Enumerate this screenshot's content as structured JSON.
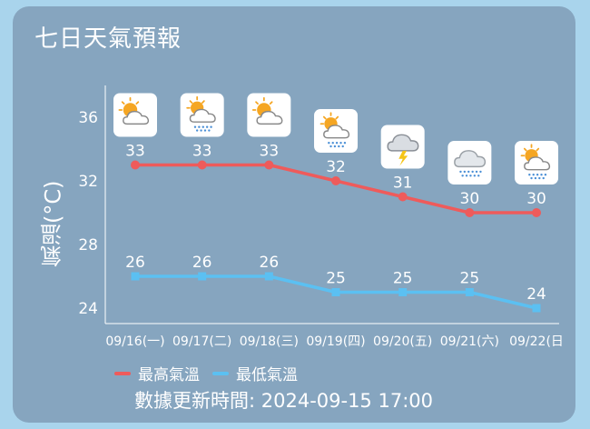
{
  "title": "七日天氣預報",
  "updated": "數據更新時間: 2024-09-15 17:00",
  "chart_data": {
    "type": "line",
    "ylabel": "氣溫(°C)",
    "xlabel": "",
    "categories": [
      "09/16(一)",
      "09/17(二)",
      "09/18(三)",
      "09/19(四)",
      "09/20(五)",
      "09/21(六)",
      "09/22(日"
    ],
    "ylim": [
      23,
      38
    ],
    "yticks": [
      24,
      28,
      32,
      36
    ],
    "grid": false,
    "legend": "bottom-left",
    "series": [
      {
        "name": "最高氣溫",
        "color": "#ee5b5b",
        "values": [
          33,
          33,
          33,
          32,
          31,
          30,
          30
        ]
      },
      {
        "name": "最低氣溫",
        "color": "#5bc0f2",
        "values": [
          26,
          26,
          26,
          25,
          25,
          25,
          24
        ]
      }
    ],
    "icons": [
      "sun-cloud-icon",
      "sun-cloud-rain-icon",
      "sun-cloud-icon",
      "sun-cloud-rain-icon",
      "thunderstorm-icon",
      "cloud-rain-icon",
      "sun-cloud-rain-icon"
    ]
  }
}
